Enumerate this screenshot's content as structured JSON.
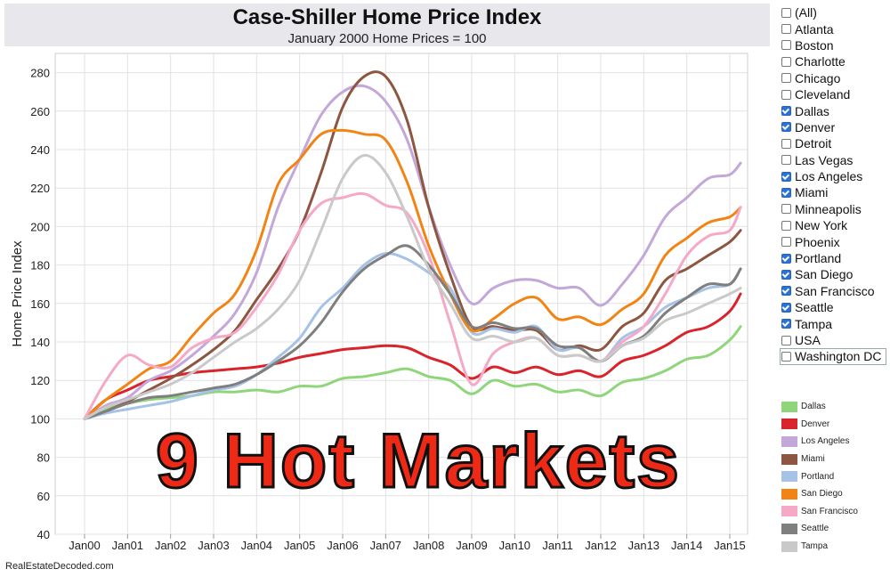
{
  "chart_data": {
    "type": "line",
    "title": "Case-Shiller Home Price Index",
    "subtitle": "January 2000 Home Prices = 100",
    "xlabel": "",
    "ylabel": "Home Price Index",
    "ylim": [
      40,
      290
    ],
    "xlim": [
      2000,
      2015.5
    ],
    "y_ticks": [
      40,
      60,
      80,
      100,
      120,
      140,
      160,
      180,
      200,
      220,
      240,
      260,
      280
    ],
    "x_tick_labels": [
      "Jan00",
      "Jan01",
      "Jan02",
      "Jan03",
      "Jan04",
      "Jan05",
      "Jan06",
      "Jan07",
      "Jan08",
      "Jan09",
      "Jan10",
      "Jan11",
      "Jan12",
      "Jan13",
      "Jan14",
      "Jan15"
    ],
    "x": [
      2000,
      2000.5,
      2001,
      2001.5,
      2002,
      2002.5,
      2003,
      2003.5,
      2004,
      2004.5,
      2005,
      2005.5,
      2006,
      2006.5,
      2007,
      2007.5,
      2008,
      2008.5,
      2009,
      2009.5,
      2010,
      2010.5,
      2011,
      2011.5,
      2012,
      2012.5,
      2013,
      2013.5,
      2014,
      2014.5,
      2015,
      2015.25
    ],
    "grid": true,
    "series": [
      {
        "name": "Dallas",
        "color": "#8fd67a",
        "values": [
          100,
          105,
          108,
          110,
          111,
          112,
          114,
          114,
          115,
          114,
          117,
          117,
          121,
          122,
          124,
          126,
          122,
          120,
          113,
          120,
          117,
          118,
          114,
          115,
          112,
          119,
          121,
          125,
          131,
          133,
          141,
          148
        ]
      },
      {
        "name": "Denver",
        "color": "#d8242a",
        "values": [
          100,
          110,
          115,
          120,
          122,
          124,
          125,
          126,
          127,
          129,
          132,
          134,
          136,
          137,
          138,
          137,
          132,
          128,
          121,
          127,
          124,
          127,
          123,
          125,
          122,
          130,
          133,
          138,
          145,
          148,
          156,
          165
        ]
      },
      {
        "name": "Los Angeles",
        "color": "#c4a7d9",
        "values": [
          100,
          107,
          111,
          120,
          125,
          133,
          143,
          155,
          176,
          210,
          235,
          258,
          270,
          273,
          265,
          245,
          210,
          180,
          160,
          168,
          172,
          172,
          168,
          168,
          159,
          170,
          185,
          205,
          215,
          225,
          227,
          233
        ]
      },
      {
        "name": "Miami",
        "color": "#8c5640",
        "values": [
          100,
          104,
          109,
          115,
          121,
          128,
          136,
          146,
          162,
          178,
          198,
          228,
          262,
          278,
          278,
          255,
          210,
          175,
          148,
          148,
          146,
          146,
          136,
          138,
          136,
          148,
          155,
          172,
          178,
          185,
          192,
          198
        ]
      },
      {
        "name": "Portland",
        "color": "#a6c2e6",
        "values": [
          100,
          103,
          105,
          107,
          109,
          112,
          115,
          117,
          123,
          132,
          142,
          158,
          168,
          180,
          186,
          183,
          176,
          168,
          145,
          147,
          145,
          148,
          136,
          137,
          130,
          142,
          148,
          158,
          163,
          168,
          170,
          178
        ]
      },
      {
        "name": "San Diego",
        "color": "#f28415",
        "values": [
          100,
          110,
          118,
          126,
          130,
          143,
          155,
          165,
          188,
          222,
          235,
          248,
          250,
          248,
          245,
          223,
          190,
          165,
          146,
          152,
          160,
          163,
          152,
          153,
          149,
          157,
          165,
          185,
          194,
          202,
          205,
          210
        ]
      },
      {
        "name": "San Francisco",
        "color": "#f5a9c7",
        "values": [
          100,
          120,
          133,
          128,
          127,
          137,
          142,
          145,
          158,
          175,
          198,
          212,
          215,
          217,
          211,
          207,
          185,
          150,
          118,
          134,
          140,
          142,
          133,
          133,
          130,
          140,
          148,
          165,
          185,
          195,
          198,
          210
        ]
      },
      {
        "name": "Seattle",
        "color": "#7f7f7f",
        "values": [
          100,
          104,
          108,
          111,
          112,
          114,
          116,
          118,
          123,
          130,
          138,
          150,
          166,
          178,
          185,
          190,
          180,
          165,
          148,
          150,
          147,
          147,
          138,
          137,
          130,
          138,
          143,
          155,
          163,
          170,
          170,
          178
        ]
      },
      {
        "name": "Tampa",
        "color": "#c9c9c9",
        "values": [
          100,
          106,
          110,
          114,
          118,
          124,
          132,
          140,
          147,
          157,
          172,
          198,
          225,
          237,
          228,
          205,
          178,
          160,
          142,
          143,
          140,
          142,
          133,
          133,
          130,
          138,
          142,
          151,
          155,
          160,
          165,
          168
        ]
      }
    ]
  },
  "filter": {
    "items": [
      {
        "label": "(All)",
        "checked": false
      },
      {
        "label": "Atlanta",
        "checked": false
      },
      {
        "label": "Boston",
        "checked": false
      },
      {
        "label": "Charlotte",
        "checked": false
      },
      {
        "label": "Chicago",
        "checked": false
      },
      {
        "label": "Cleveland",
        "checked": false
      },
      {
        "label": "Dallas",
        "checked": true
      },
      {
        "label": "Denver",
        "checked": true
      },
      {
        "label": "Detroit",
        "checked": false
      },
      {
        "label": "Las Vegas",
        "checked": false
      },
      {
        "label": "Los Angeles",
        "checked": true
      },
      {
        "label": "Miami",
        "checked": true
      },
      {
        "label": "Minneapolis",
        "checked": false
      },
      {
        "label": "New York",
        "checked": false
      },
      {
        "label": "Phoenix",
        "checked": false
      },
      {
        "label": "Portland",
        "checked": true
      },
      {
        "label": "San Diego",
        "checked": true
      },
      {
        "label": "San Francisco",
        "checked": true
      },
      {
        "label": "Seattle",
        "checked": true
      },
      {
        "label": "Tampa",
        "checked": true
      },
      {
        "label": "USA",
        "checked": false
      },
      {
        "label": "Washington DC",
        "checked": false
      }
    ]
  },
  "overlay_text": "9 Hot Markets",
  "watermark": "RealEstateDecoded.com"
}
